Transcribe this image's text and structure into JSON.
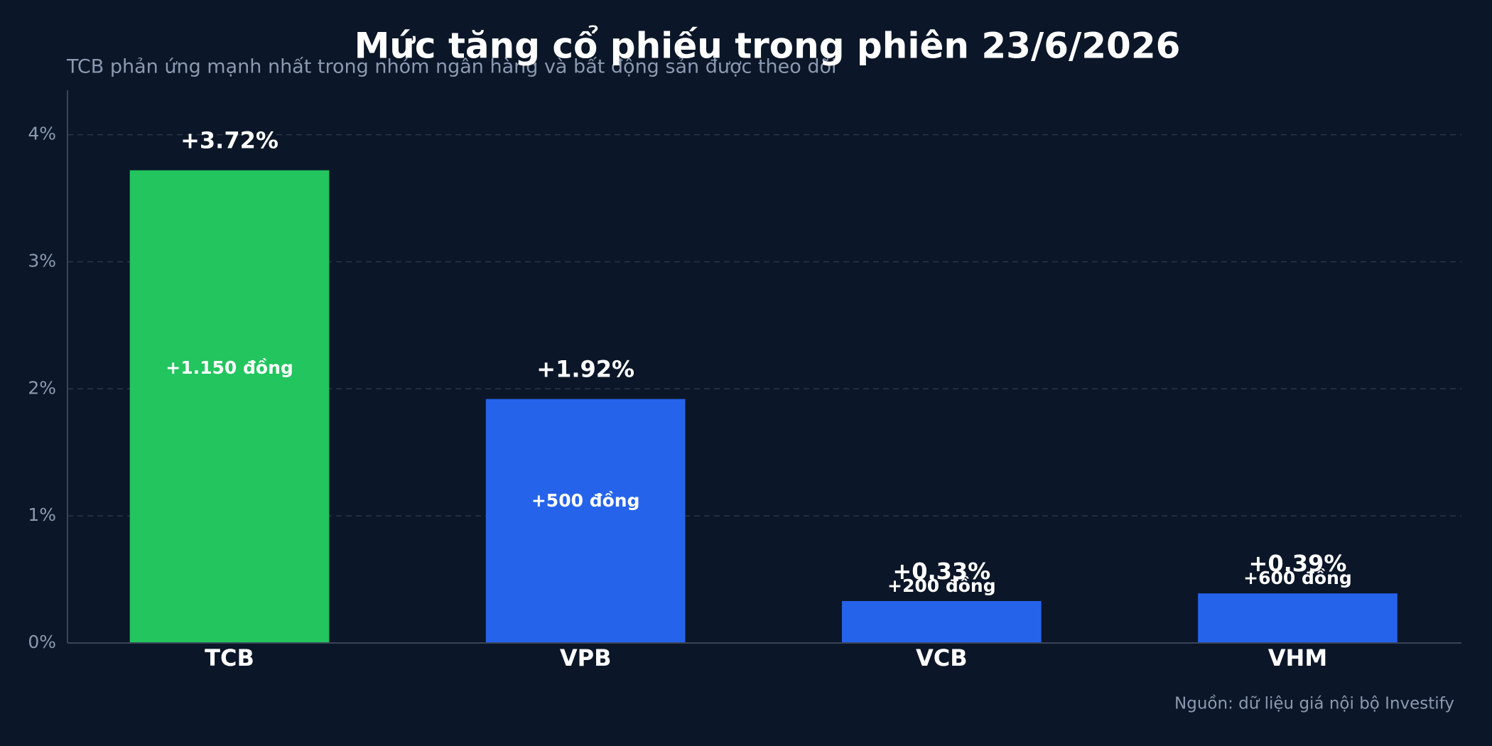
{
  "chart_data": {
    "type": "bar",
    "title": "Mức tăng cổ phiếu trong phiên 23/6/2026",
    "subtitle": "TCB phản ứng mạnh nhất trong nhóm ngân hàng và bất động sản được theo dõi",
    "source": "Nguồn: dữ liệu giá nội bộ Investify",
    "categories": [
      "TCB",
      "VPB",
      "VCB",
      "VHM"
    ],
    "values": [
      3.72,
      1.92,
      0.33,
      0.39
    ],
    "value_labels": [
      "+3.72%",
      "+1.92%",
      "+0.33%",
      "+0.39%"
    ],
    "inner_labels": [
      "+1.150 đồng",
      "+500 đồng",
      "+200 đồng",
      "+600 đồng"
    ],
    "colors": [
      "#22c55e",
      "#2563eb",
      "#2563eb",
      "#2563eb"
    ],
    "ylim": [
      0,
      4.35
    ],
    "yticks": [
      {
        "value": 0,
        "label": "0%"
      },
      {
        "value": 1,
        "label": "1%"
      },
      {
        "value": 2,
        "label": "2%"
      },
      {
        "value": 3,
        "label": "3%"
      },
      {
        "value": 4,
        "label": "4%"
      }
    ],
    "grid": true
  }
}
